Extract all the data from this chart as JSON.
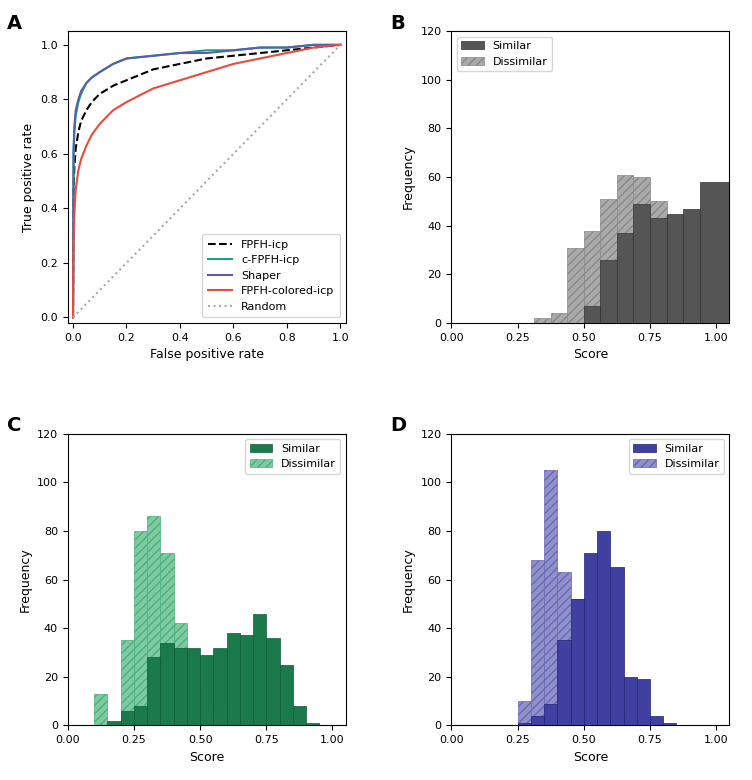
{
  "panel_labels": [
    "A",
    "B",
    "C",
    "D"
  ],
  "roc": {
    "fpfh_icp": {
      "fpr": [
        0.0,
        0.002,
        0.005,
        0.01,
        0.02,
        0.03,
        0.05,
        0.07,
        0.1,
        0.15,
        0.2,
        0.3,
        0.4,
        0.5,
        0.6,
        0.7,
        0.8,
        0.9,
        1.0
      ],
      "tpr": [
        0.0,
        0.47,
        0.55,
        0.62,
        0.68,
        0.72,
        0.76,
        0.79,
        0.82,
        0.85,
        0.87,
        0.91,
        0.93,
        0.95,
        0.96,
        0.97,
        0.98,
        0.99,
        1.0
      ],
      "color": "#000000",
      "linestyle": "--",
      "label": "FPFH-icp",
      "linewidth": 1.5
    },
    "c_fpfh_icp": {
      "fpr": [
        0.0,
        0.002,
        0.005,
        0.01,
        0.02,
        0.03,
        0.05,
        0.07,
        0.1,
        0.15,
        0.2,
        0.3,
        0.4,
        0.5,
        0.6,
        0.7,
        0.8,
        0.9,
        1.0
      ],
      "tpr": [
        0.0,
        0.6,
        0.68,
        0.74,
        0.79,
        0.82,
        0.86,
        0.88,
        0.9,
        0.93,
        0.95,
        0.96,
        0.97,
        0.98,
        0.98,
        0.99,
        0.99,
        1.0,
        1.0
      ],
      "color": "#17a589",
      "linestyle": "-",
      "label": "c-FPFH-icp",
      "linewidth": 1.5
    },
    "shaper": {
      "fpr": [
        0.0,
        0.002,
        0.005,
        0.01,
        0.02,
        0.03,
        0.05,
        0.07,
        0.1,
        0.15,
        0.2,
        0.3,
        0.4,
        0.5,
        0.6,
        0.7,
        0.8,
        0.9,
        1.0
      ],
      "tpr": [
        0.0,
        0.62,
        0.7,
        0.76,
        0.8,
        0.83,
        0.86,
        0.88,
        0.9,
        0.93,
        0.95,
        0.96,
        0.97,
        0.97,
        0.98,
        0.99,
        0.99,
        1.0,
        1.0
      ],
      "color": "#5b5ea6",
      "linestyle": "-",
      "label": "Shaper",
      "linewidth": 1.5
    },
    "fpfh_colored_icp": {
      "fpr": [
        0.0,
        0.002,
        0.005,
        0.01,
        0.02,
        0.03,
        0.05,
        0.07,
        0.1,
        0.15,
        0.2,
        0.3,
        0.4,
        0.5,
        0.6,
        0.7,
        0.8,
        0.9,
        1.0
      ],
      "tpr": [
        0.0,
        0.28,
        0.38,
        0.47,
        0.54,
        0.58,
        0.63,
        0.67,
        0.71,
        0.76,
        0.79,
        0.84,
        0.87,
        0.9,
        0.93,
        0.95,
        0.97,
        0.99,
        1.0
      ],
      "color": "#e74c3c",
      "linestyle": "-",
      "label": "FPFH-colored-icp",
      "linewidth": 1.5
    },
    "random": {
      "fpr": [
        0.0,
        1.0
      ],
      "tpr": [
        0.0,
        1.0
      ],
      "color": "#aaaaaa",
      "linestyle": ":",
      "label": "Random",
      "linewidth": 1.5
    }
  },
  "hist_B": {
    "similar_color": "#555555",
    "dissimilar_color": "#aaaaaa",
    "xlabel": "Score",
    "ylabel": "Frequency",
    "ylim": [
      0,
      120
    ],
    "xlim": [
      0,
      1.05
    ],
    "xticks": [
      0,
      0.25,
      0.5,
      0.75,
      1.0
    ]
  },
  "hist_C": {
    "similar_color": "#1a7a4a",
    "dissimilar_color": "#7ecba1",
    "xlabel": "Score",
    "ylabel": "Frequency",
    "ylim": [
      0,
      120
    ],
    "xlim": [
      0,
      1.05
    ],
    "xticks": [
      0,
      0.25,
      0.5,
      0.75,
      1.0
    ]
  },
  "hist_D": {
    "similar_color": "#4040a0",
    "dissimilar_color": "#9090cc",
    "xlabel": "Score",
    "ylabel": "Frequency",
    "ylim": [
      0,
      120
    ],
    "xlim": [
      0,
      1.05
    ],
    "xticks": [
      0,
      0.25,
      0.5,
      0.75,
      1.0
    ]
  },
  "background_color": "#ffffff",
  "label_fontsize": 14,
  "axis_fontsize": 9,
  "tick_fontsize": 8,
  "legend_fontsize": 8
}
